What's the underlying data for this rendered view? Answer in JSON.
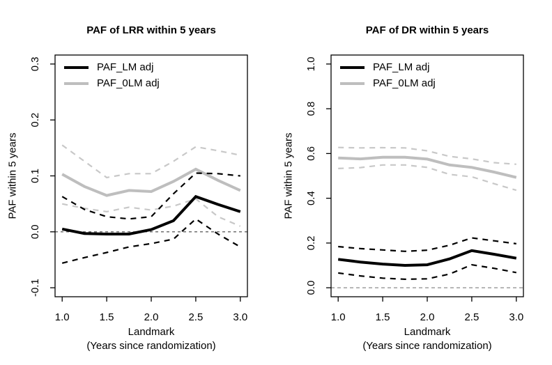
{
  "figure": {
    "background": "#ffffff"
  },
  "chart_data": [
    {
      "type": "line",
      "title": "PAF of LRR within 5 years",
      "ylabel": "PAF within 5 years",
      "xlabel_line1": "Landmark",
      "xlabel_line2": "(Years since randomization)",
      "xlim": [
        1.0,
        3.0
      ],
      "ylim": [
        -0.1,
        0.3
      ],
      "xticks": [
        1.0,
        1.5,
        2.0,
        2.5,
        3.0
      ],
      "yticks": [
        -0.1,
        0.0,
        0.1,
        0.2,
        0.3
      ],
      "grid": false,
      "legend_position": "top-left",
      "legend": [
        {
          "label": "PAF_LM adj",
          "color": "#000000"
        },
        {
          "label": "PAF_0LM adj",
          "color": "#bebebe"
        }
      ],
      "reference_line": {
        "y": 0.0,
        "color": "#404040",
        "dash": "4,4",
        "width": 1.1
      },
      "x": [
        1.0,
        1.25,
        1.5,
        1.75,
        2.0,
        2.25,
        2.5,
        2.75,
        3.0
      ],
      "series": [
        {
          "name": "PAF_0LM adj upper CI",
          "role": "ci-upper",
          "color": "#c8c8c8",
          "style": "dashed",
          "values": [
            0.155,
            0.126,
            0.097,
            0.104,
            0.104,
            0.126,
            0.152,
            0.145,
            0.137
          ]
        },
        {
          "name": "PAF_0LM adj lower CI",
          "role": "ci-lower",
          "color": "#c8c8c8",
          "style": "dashed",
          "values": [
            0.05,
            0.042,
            0.036,
            0.044,
            0.039,
            0.046,
            0.059,
            0.027,
            0.01
          ]
        },
        {
          "name": "PAF_0LM adj",
          "role": "estimate",
          "color": "#bebebe",
          "style": "solid",
          "values": [
            0.103,
            0.081,
            0.065,
            0.074,
            0.072,
            0.09,
            0.112,
            0.092,
            0.074
          ]
        },
        {
          "name": "PAF_LM adj upper CI",
          "role": "ci-upper",
          "color": "#000000",
          "style": "dashed",
          "values": [
            0.063,
            0.04,
            0.027,
            0.023,
            0.027,
            0.068,
            0.105,
            0.104,
            0.1
          ]
        },
        {
          "name": "PAF_LM adj lower CI",
          "role": "ci-lower",
          "color": "#000000",
          "style": "dashed",
          "values": [
            -0.056,
            -0.046,
            -0.037,
            -0.027,
            -0.021,
            -0.013,
            0.023,
            -0.004,
            -0.027
          ]
        },
        {
          "name": "PAF_LM adj",
          "role": "estimate",
          "color": "#000000",
          "style": "solid",
          "values": [
            0.005,
            -0.003,
            -0.004,
            -0.004,
            0.004,
            0.02,
            0.063,
            0.049,
            0.036
          ]
        }
      ]
    },
    {
      "type": "line",
      "title": "PAF of DR within 5 years",
      "ylabel": "PAF within 5 years",
      "xlabel_line1": "Landmark",
      "xlabel_line2": "(Years since randomization)",
      "xlim": [
        1.0,
        3.0
      ],
      "ylim": [
        0.0,
        1.0
      ],
      "xticks": [
        1.0,
        1.5,
        2.0,
        2.5,
        3.0
      ],
      "yticks": [
        0.0,
        0.2,
        0.4,
        0.6,
        0.8,
        1.0
      ],
      "grid": false,
      "legend_position": "top-left",
      "legend": [
        {
          "label": "PAF_LM adj",
          "color": "#000000"
        },
        {
          "label": "PAF_0LM adj",
          "color": "#bebebe"
        }
      ],
      "reference_line": {
        "y": 0.0,
        "color": "#9e9e9e",
        "dash": "5,4",
        "width": 1.5
      },
      "x": [
        1.0,
        1.25,
        1.5,
        1.75,
        2.0,
        2.25,
        2.5,
        2.75,
        3.0
      ],
      "series": [
        {
          "name": "PAF_0LM adj upper CI",
          "role": "ci-upper",
          "color": "#c8c8c8",
          "style": "dashed",
          "values": [
            0.627,
            0.625,
            0.626,
            0.625,
            0.612,
            0.587,
            0.576,
            0.559,
            0.552
          ]
        },
        {
          "name": "PAF_0LM adj lower CI",
          "role": "ci-lower",
          "color": "#c8c8c8",
          "style": "dashed",
          "values": [
            0.533,
            0.537,
            0.549,
            0.549,
            0.538,
            0.507,
            0.496,
            0.465,
            0.436
          ]
        },
        {
          "name": "PAF_0LM adj",
          "role": "estimate",
          "color": "#bebebe",
          "style": "solid",
          "values": [
            0.58,
            0.576,
            0.583,
            0.583,
            0.575,
            0.549,
            0.538,
            0.517,
            0.493
          ]
        },
        {
          "name": "PAF_LM adj upper CI",
          "role": "ci-upper",
          "color": "#000000",
          "style": "dashed",
          "values": [
            0.184,
            0.175,
            0.169,
            0.163,
            0.168,
            0.19,
            0.223,
            0.21,
            0.197
          ]
        },
        {
          "name": "PAF_LM adj lower CI",
          "role": "ci-lower",
          "color": "#000000",
          "style": "dashed",
          "values": [
            0.066,
            0.053,
            0.043,
            0.038,
            0.04,
            0.061,
            0.103,
            0.087,
            0.068
          ]
        },
        {
          "name": "PAF_LM adj",
          "role": "estimate",
          "color": "#000000",
          "style": "solid",
          "values": [
            0.127,
            0.115,
            0.106,
            0.1,
            0.103,
            0.129,
            0.166,
            0.15,
            0.132
          ]
        }
      ]
    }
  ]
}
